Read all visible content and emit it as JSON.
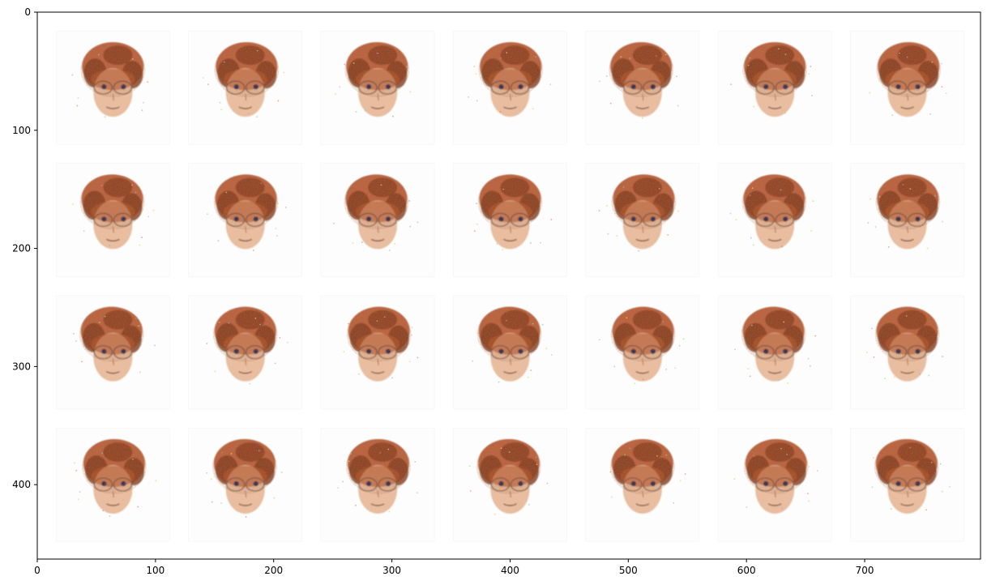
{
  "chart_data": {
    "type": "image",
    "title": "",
    "xlabel": "",
    "ylabel": "",
    "xlim": [
      0,
      798
    ],
    "ylim": [
      463,
      0
    ],
    "grid": false,
    "x_ticks": [
      0,
      100,
      200,
      300,
      400,
      500,
      600,
      700
    ],
    "y_ticks": [
      0,
      100,
      200,
      300,
      400
    ],
    "image_grid": {
      "rows": 4,
      "cols": 7,
      "tile_size": 96,
      "tile_stride": 112,
      "origin": [
        16,
        16
      ]
    },
    "tile_content": "generated cartoon face with orange-brown hair, dark eyes and glasses on a white background",
    "colors": {
      "hair": "#b5532a",
      "hair_dark": "#7a3418",
      "skin": "#e8b99a",
      "eyes": "#1f2a55",
      "background": "#ffffff",
      "axes": "#000000"
    }
  }
}
